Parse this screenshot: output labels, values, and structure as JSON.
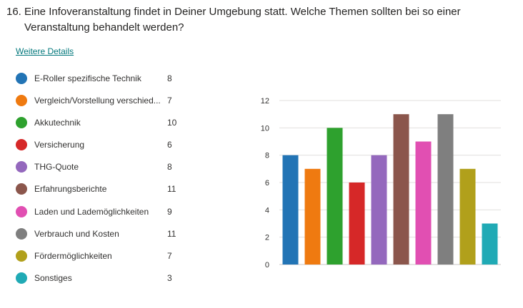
{
  "question": {
    "number": "16.",
    "text": "Eine Infoveranstaltung findet in Deiner Umgebung statt. Welche Themen sollten bei so einer Veranstaltung behandelt werden?"
  },
  "details_link": "Weitere Details",
  "legend": [
    {
      "label": "E-Roller spezifische Technik",
      "count": "8",
      "color": "#2274b5"
    },
    {
      "label": "Vergleich/Vorstellung verschied...",
      "count": "7",
      "color": "#ef7a10"
    },
    {
      "label": "Akkutechnik",
      "count": "10",
      "color": "#2ea12e"
    },
    {
      "label": "Versicherung",
      "count": "6",
      "color": "#d62828"
    },
    {
      "label": "THG-Quote",
      "count": "8",
      "color": "#9468bd"
    },
    {
      "label": "Erfahrungsberichte",
      "count": "11",
      "color": "#8b564c"
    },
    {
      "label": "Laden und Lademöglichkeiten",
      "count": "9",
      "color": "#e14fb2"
    },
    {
      "label": "Verbrauch und Kosten",
      "count": "11",
      "color": "#7f7f7f"
    },
    {
      "label": "Fördermöglichkeiten",
      "count": "7",
      "color": "#b1a01b"
    },
    {
      "label": "Sonstiges",
      "count": "3",
      "color": "#20aab5"
    }
  ],
  "chart_data": {
    "type": "bar",
    "categories": [
      "E-Roller spezifische Technik",
      "Vergleich/Vorstellung verschied...",
      "Akkutechnik",
      "Versicherung",
      "THG-Quote",
      "Erfahrungsberichte",
      "Laden und Lademöglichkeiten",
      "Verbrauch und Kosten",
      "Fördermöglichkeiten",
      "Sonstiges"
    ],
    "values": [
      8,
      7,
      10,
      6,
      8,
      11,
      9,
      11,
      7,
      3
    ],
    "colors": [
      "#2274b5",
      "#ef7a10",
      "#2ea12e",
      "#d62828",
      "#9468bd",
      "#8b564c",
      "#e14fb2",
      "#7f7f7f",
      "#b1a01b",
      "#20aab5"
    ],
    "ylim": [
      0,
      12
    ],
    "yticks": [
      0,
      2,
      4,
      6,
      8,
      10,
      12
    ],
    "grid": true,
    "legend_placement": "left"
  }
}
